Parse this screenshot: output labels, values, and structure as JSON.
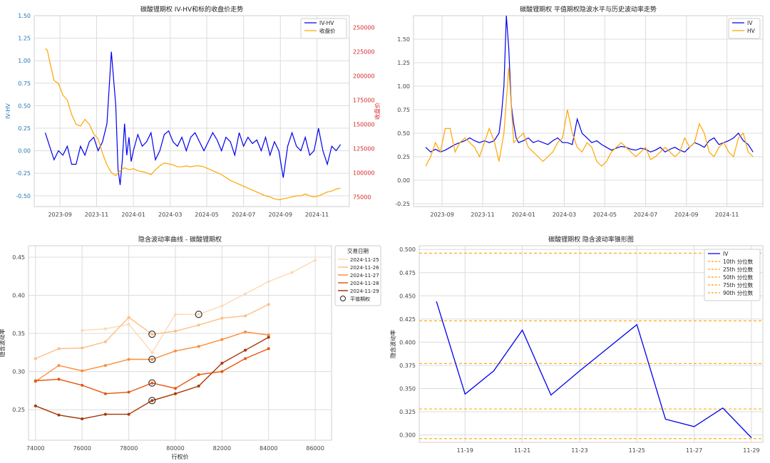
{
  "chart_data": [
    {
      "type": "line",
      "title": "碳酸锂期权 IV-HV和标的收盘价走势",
      "ylabel": "IV-HV",
      "y2label": "收盘价",
      "colors": {
        "left_axis": "#1f77b4",
        "right_axis": "#d62728"
      },
      "x_ticks": [
        "2023-09",
        "2023-11",
        "2024-01",
        "2024-03",
        "2024-05",
        "2024-07",
        "2024-09",
        "2024-11"
      ],
      "x_tick_values": [
        2023.667,
        2023.833,
        2024.0,
        2024.167,
        2024.333,
        2024.5,
        2024.667,
        2024.833
      ],
      "xlim": [
        2023.55,
        2024.98
      ],
      "ylim": [
        -0.62,
        1.5
      ],
      "y_ticks": [
        "1.50",
        "1.25",
        "1.00",
        "0.75",
        "0.50",
        "0.25",
        "0.00",
        "-0.25",
        "-0.50"
      ],
      "y_tick_values": [
        1.5,
        1.25,
        1.0,
        0.75,
        0.5,
        0.25,
        0.0,
        -0.25,
        -0.5
      ],
      "y2lim": [
        65000,
        262000
      ],
      "y2_ticks": [
        "250000",
        "225000",
        "200000",
        "175000",
        "150000",
        "125000",
        "100000",
        "75000"
      ],
      "y2_tick_values": [
        250000,
        225000,
        200000,
        175000,
        150000,
        125000,
        100000,
        75000
      ],
      "grid": true,
      "legend_position": "top-right",
      "series": [
        {
          "name": "IV-HV",
          "color": "#0000ee",
          "axis": "left",
          "x": [
            2023.6,
            2023.62,
            2023.64,
            2023.66,
            2023.68,
            2023.7,
            2023.72,
            2023.74,
            2023.76,
            2023.78,
            2023.8,
            2023.82,
            2023.84,
            2023.86,
            2023.88,
            2023.9,
            2023.92,
            2023.93,
            2023.94,
            2023.95,
            2023.96,
            2023.97,
            2023.98,
            2023.99,
            2024.0,
            2024.02,
            2024.04,
            2024.06,
            2024.08,
            2024.1,
            2024.12,
            2024.14,
            2024.16,
            2024.18,
            2024.2,
            2024.22,
            2024.24,
            2024.26,
            2024.28,
            2024.3,
            2024.32,
            2024.34,
            2024.36,
            2024.38,
            2024.4,
            2024.42,
            2024.44,
            2024.46,
            2024.48,
            2024.5,
            2024.52,
            2024.54,
            2024.56,
            2024.58,
            2024.6,
            2024.62,
            2024.64,
            2024.66,
            2024.68,
            2024.7,
            2024.72,
            2024.74,
            2024.76,
            2024.78,
            2024.8,
            2024.82,
            2024.84,
            2024.86,
            2024.88,
            2024.9,
            2024.92,
            2024.94
          ],
          "y": [
            0.2,
            0.05,
            -0.1,
            0.0,
            -0.05,
            0.05,
            -0.15,
            -0.15,
            0.05,
            -0.05,
            0.1,
            0.15,
            0.0,
            0.1,
            0.3,
            1.1,
            0.5,
            -0.2,
            -0.38,
            -0.1,
            0.3,
            -0.05,
            0.15,
            -0.12,
            0.0,
            0.18,
            0.05,
            0.1,
            0.2,
            -0.1,
            0.0,
            0.18,
            0.22,
            0.1,
            0.05,
            0.15,
            0.0,
            0.15,
            0.2,
            0.1,
            0.0,
            0.1,
            0.2,
            0.12,
            0.0,
            0.15,
            0.1,
            -0.05,
            0.2,
            0.05,
            0.15,
            0.08,
            0.12,
            0.0,
            0.15,
            -0.05,
            0.1,
            0.0,
            -0.3,
            0.05,
            0.2,
            0.05,
            0.0,
            0.15,
            -0.05,
            0.0,
            0.25,
            0.0,
            -0.15,
            0.05,
            0.0,
            0.07
          ]
        },
        {
          "name": "收盘价",
          "color": "#ffa500",
          "axis": "right",
          "x": [
            2023.6,
            2023.61,
            2023.62,
            2023.64,
            2023.66,
            2023.68,
            2023.7,
            2023.72,
            2023.74,
            2023.76,
            2023.78,
            2023.8,
            2023.82,
            2023.84,
            2023.86,
            2023.88,
            2023.9,
            2023.92,
            2023.94,
            2023.96,
            2023.98,
            2024.0,
            2024.02,
            2024.04,
            2024.06,
            2024.08,
            2024.1,
            2024.12,
            2024.14,
            2024.16,
            2024.18,
            2024.2,
            2024.22,
            2024.24,
            2024.26,
            2024.28,
            2024.3,
            2024.32,
            2024.34,
            2024.36,
            2024.38,
            2024.4,
            2024.42,
            2024.44,
            2024.46,
            2024.48,
            2024.5,
            2024.52,
            2024.54,
            2024.56,
            2024.58,
            2024.6,
            2024.62,
            2024.64,
            2024.66,
            2024.68,
            2024.7,
            2024.72,
            2024.74,
            2024.76,
            2024.78,
            2024.8,
            2024.82,
            2024.84,
            2024.86,
            2024.88,
            2024.9,
            2024.92,
            2024.94
          ],
          "y": [
            228000,
            226000,
            215000,
            195000,
            192000,
            180000,
            175000,
            160000,
            150000,
            148000,
            155000,
            150000,
            140000,
            135000,
            120000,
            108000,
            100000,
            97000,
            102000,
            105000,
            103000,
            104000,
            102000,
            101000,
            100000,
            98000,
            103000,
            107000,
            110000,
            109000,
            108000,
            106000,
            106000,
            107000,
            106000,
            107000,
            107000,
            106000,
            104000,
            102000,
            100000,
            98000,
            95000,
            92000,
            90000,
            88000,
            86000,
            84000,
            82000,
            80000,
            78000,
            76000,
            75000,
            73000,
            72000,
            73000,
            74000,
            75000,
            76000,
            76000,
            78000,
            76000,
            75000,
            76000,
            78000,
            80000,
            81000,
            83000,
            84000
          ]
        }
      ]
    },
    {
      "type": "line",
      "title": "碳酸锂期权 平值期权隐波水平与历史波动率走势",
      "x_ticks": [
        "2023-09",
        "2023-11",
        "2024-01",
        "2024-03",
        "2024-05",
        "2024-07",
        "2024-09",
        "2024-11"
      ],
      "x_tick_values": [
        2023.667,
        2023.833,
        2024.0,
        2024.167,
        2024.333,
        2024.5,
        2024.667,
        2024.833
      ],
      "xlim": [
        2023.55,
        2024.98
      ],
      "ylim": [
        -0.28,
        1.75
      ],
      "y_ticks": [
        "1.50",
        "1.25",
        "1.00",
        "0.75",
        "0.50",
        "0.25",
        "0.00",
        "-0.25"
      ],
      "y_tick_values": [
        1.5,
        1.25,
        1.0,
        0.75,
        0.5,
        0.25,
        0.0,
        -0.25
      ],
      "grid": true,
      "legend_position": "top-right",
      "series": [
        {
          "name": "IV",
          "color": "#0000ee",
          "x": [
            2023.6,
            2023.62,
            2023.64,
            2023.66,
            2023.68,
            2023.7,
            2023.72,
            2023.74,
            2023.76,
            2023.78,
            2023.8,
            2023.82,
            2023.84,
            2023.86,
            2023.88,
            2023.9,
            2023.91,
            2023.92,
            2023.93,
            2023.94,
            2023.95,
            2023.96,
            2023.97,
            2023.98,
            2024.0,
            2024.02,
            2024.04,
            2024.06,
            2024.08,
            2024.1,
            2024.12,
            2024.14,
            2024.16,
            2024.18,
            2024.2,
            2024.22,
            2024.24,
            2024.26,
            2024.28,
            2024.3,
            2024.32,
            2024.34,
            2024.36,
            2024.38,
            2024.4,
            2024.42,
            2024.44,
            2024.46,
            2024.48,
            2024.5,
            2024.52,
            2024.54,
            2024.56,
            2024.58,
            2024.6,
            2024.62,
            2024.64,
            2024.66,
            2024.68,
            2024.7,
            2024.72,
            2024.74,
            2024.76,
            2024.78,
            2024.8,
            2024.82,
            2024.84,
            2024.86,
            2024.88,
            2024.9,
            2024.92,
            2024.94
          ],
          "y": [
            0.35,
            0.3,
            0.33,
            0.3,
            0.32,
            0.35,
            0.38,
            0.4,
            0.42,
            0.45,
            0.42,
            0.4,
            0.42,
            0.4,
            0.42,
            0.5,
            0.7,
            1.0,
            1.75,
            1.4,
            0.8,
            0.6,
            0.45,
            0.4,
            0.42,
            0.45,
            0.4,
            0.42,
            0.4,
            0.38,
            0.42,
            0.45,
            0.4,
            0.4,
            0.38,
            0.65,
            0.5,
            0.45,
            0.4,
            0.42,
            0.38,
            0.35,
            0.32,
            0.34,
            0.36,
            0.35,
            0.33,
            0.32,
            0.34,
            0.33,
            0.3,
            0.32,
            0.35,
            0.3,
            0.33,
            0.35,
            0.32,
            0.3,
            0.35,
            0.4,
            0.38,
            0.35,
            0.42,
            0.45,
            0.38,
            0.4,
            0.42,
            0.45,
            0.5,
            0.42,
            0.38,
            0.3
          ]
        },
        {
          "name": "HV",
          "color": "#ffa500",
          "x": [
            2023.6,
            2023.62,
            2023.64,
            2023.66,
            2023.68,
            2023.7,
            2023.72,
            2023.74,
            2023.76,
            2023.78,
            2023.8,
            2023.82,
            2023.84,
            2023.86,
            2023.88,
            2023.9,
            2023.92,
            2023.94,
            2023.96,
            2023.98,
            2024.0,
            2024.02,
            2024.04,
            2024.06,
            2024.08,
            2024.1,
            2024.12,
            2024.14,
            2024.16,
            2024.18,
            2024.2,
            2024.22,
            2024.24,
            2024.26,
            2024.28,
            2024.3,
            2024.32,
            2024.34,
            2024.36,
            2024.38,
            2024.4,
            2024.42,
            2024.44,
            2024.46,
            2024.48,
            2024.5,
            2024.52,
            2024.54,
            2024.56,
            2024.58,
            2024.6,
            2024.62,
            2024.64,
            2024.66,
            2024.68,
            2024.7,
            2024.72,
            2024.74,
            2024.76,
            2024.78,
            2024.8,
            2024.82,
            2024.84,
            2024.86,
            2024.88,
            2024.9,
            2024.92,
            2024.94
          ],
          "y": [
            0.15,
            0.25,
            0.4,
            0.3,
            0.55,
            0.55,
            0.3,
            0.4,
            0.45,
            0.4,
            0.35,
            0.25,
            0.4,
            0.55,
            0.42,
            0.2,
            0.5,
            1.2,
            0.4,
            0.45,
            0.5,
            0.35,
            0.3,
            0.25,
            0.2,
            0.25,
            0.3,
            0.4,
            0.45,
            0.75,
            0.5,
            0.35,
            0.3,
            0.4,
            0.35,
            0.2,
            0.15,
            0.2,
            0.3,
            0.35,
            0.4,
            0.35,
            0.3,
            0.25,
            0.3,
            0.35,
            0.22,
            0.25,
            0.3,
            0.35,
            0.3,
            0.25,
            0.3,
            0.45,
            0.35,
            0.4,
            0.6,
            0.5,
            0.3,
            0.25,
            0.35,
            0.4,
            0.3,
            0.25,
            0.45,
            0.5,
            0.3,
            0.25
          ]
        }
      ]
    },
    {
      "type": "line",
      "title": "隐含波动率曲线 - 碳酸锂期权",
      "xlabel": "行权价",
      "ylabel": "隐含波动率",
      "xlim": [
        73700,
        86700
      ],
      "ylim": [
        0.21,
        0.465
      ],
      "x_ticks": [
        "74000",
        "76000",
        "78000",
        "80000",
        "82000",
        "84000",
        "86000"
      ],
      "x_tick_values": [
        74000,
        76000,
        78000,
        80000,
        82000,
        84000,
        86000
      ],
      "y_ticks": [
        "0.45",
        "0.40",
        "0.35",
        "0.30",
        "0.25"
      ],
      "y_tick_values": [
        0.45,
        0.4,
        0.35,
        0.3,
        0.25
      ],
      "grid": true,
      "legend_position": "outside-right",
      "legend_title": "交易日期",
      "atm_label": "平值期权",
      "series": [
        {
          "name": "2024-11-25",
          "color": "#fdd9b5",
          "x": [
            76000,
            77000,
            78000,
            79000,
            80000,
            81000,
            82000,
            83000,
            84000,
            85000,
            86000
          ],
          "y": [
            0.354,
            0.356,
            0.362,
            0.325,
            0.375,
            0.375,
            0.386,
            0.402,
            0.418,
            0.43,
            0.446
          ],
          "atm": {
            "x": 81000,
            "y": 0.375
          }
        },
        {
          "name": "2024-11-26",
          "color": "#fdbe85",
          "x": [
            74000,
            75000,
            76000,
            77000,
            78000,
            79000,
            80000,
            81000,
            82000,
            83000,
            84000
          ],
          "y": [
            0.317,
            0.33,
            0.331,
            0.339,
            0.371,
            0.349,
            0.353,
            0.361,
            0.37,
            0.373,
            0.388
          ],
          "atm": {
            "x": 79000,
            "y": 0.349
          }
        },
        {
          "name": "2024-11-27",
          "color": "#fd8d3c",
          "x": [
            74000,
            75000,
            76000,
            77000,
            78000,
            79000,
            80000,
            81000,
            82000,
            83000,
            84000
          ],
          "y": [
            0.287,
            0.308,
            0.301,
            0.308,
            0.316,
            0.316,
            0.327,
            0.333,
            0.342,
            0.352,
            0.348
          ],
          "atm": {
            "x": 79000,
            "y": 0.316
          }
        },
        {
          "name": "2024-11-28",
          "color": "#e6550d",
          "x": [
            74000,
            75000,
            76000,
            77000,
            78000,
            79000,
            80000,
            81000,
            82000,
            83000,
            84000
          ],
          "y": [
            0.288,
            0.29,
            0.282,
            0.271,
            0.273,
            0.285,
            0.278,
            0.296,
            0.3,
            0.317,
            0.33
          ],
          "atm": {
            "x": 79000,
            "y": 0.285
          }
        },
        {
          "name": "2024-11-29",
          "color": "#a63603",
          "x": [
            74000,
            75000,
            76000,
            77000,
            78000,
            79000,
            80000,
            81000,
            82000,
            83000,
            84000
          ],
          "y": [
            0.255,
            0.243,
            0.238,
            0.244,
            0.244,
            0.262,
            0.271,
            0.281,
            0.311,
            0.328,
            0.345
          ],
          "atm": {
            "x": 79000,
            "y": 0.262
          }
        }
      ]
    },
    {
      "type": "line",
      "title": "碳酸锂期权 隐含波动率锥形图",
      "ylabel": "隐含波动率",
      "xlim": [
        17.4,
        29.4
      ],
      "ylim": [
        0.292,
        0.504
      ],
      "x_ticks": [
        "11-19",
        "11-21",
        "11-23",
        "11-25",
        "11-27",
        "11-29"
      ],
      "x_tick_values": [
        19,
        21,
        23,
        25,
        27,
        29
      ],
      "y_ticks": [
        "0.500",
        "0.475",
        "0.450",
        "0.425",
        "0.400",
        "0.375",
        "0.350",
        "0.325",
        "0.300"
      ],
      "y_tick_values": [
        0.5,
        0.475,
        0.45,
        0.425,
        0.4,
        0.375,
        0.35,
        0.325,
        0.3
      ],
      "grid": true,
      "legend_position": "top-right",
      "series": [
        {
          "name": "IV",
          "color": "#0000ee",
          "x": [
            18,
            19,
            20,
            21,
            22,
            23,
            24,
            25,
            26,
            27,
            28,
            29
          ],
          "y": [
            0.444,
            0.344,
            0.369,
            0.413,
            0.343,
            0.369,
            0.394,
            0.419,
            0.317,
            0.309,
            0.329,
            0.297
          ]
        }
      ],
      "percentiles": [
        {
          "name": "10th 分位数",
          "value": 0.296
        },
        {
          "name": "25th 分位数",
          "value": 0.328
        },
        {
          "name": "50th 分位数",
          "value": 0.377
        },
        {
          "name": "75th 分位数",
          "value": 0.423
        },
        {
          "name": "90th 分位数",
          "value": 0.496
        }
      ],
      "percentile_color": "#ffa500"
    }
  ]
}
